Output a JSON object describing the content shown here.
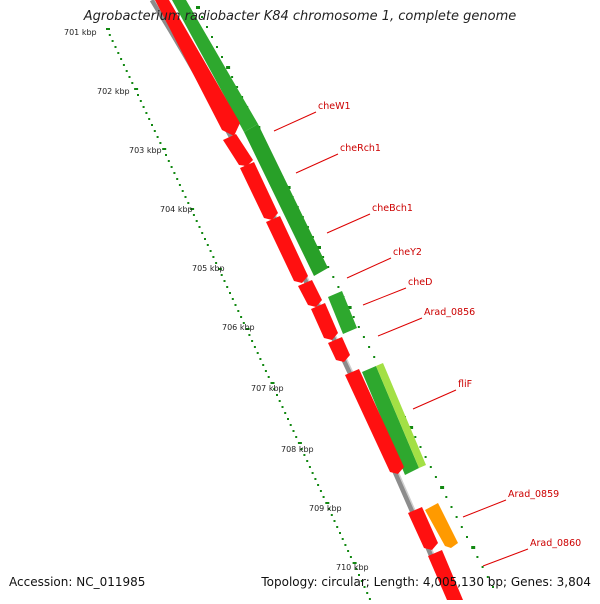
{
  "title": "Agrobacterium radiobacter K84 chromosome 1, complete genome",
  "accession": "Accession: NC_011985",
  "summary": "Topology: circular; Length: 4,005,130 bp; Genes: 3,804",
  "colors": {
    "gene_red": "#ff0000",
    "green_dark": "#1f9e1f",
    "green_mid": "#33bb33",
    "green_light": "#99e03c",
    "orange": "#ff9900",
    "label_red": "#cc0000",
    "ticks_green": "#118811",
    "backbone": "#888888"
  },
  "position_ticks": [
    "701 kbp",
    "702 kbp",
    "703 kbp",
    "704 kbp",
    "705 kbp",
    "706 kbp",
    "707 kbp",
    "708 kbp",
    "709 kbp",
    "710 kbp"
  ],
  "gene_labels": [
    "cheW1",
    "cheRch1",
    "cheBch1",
    "cheY2",
    "cheD",
    "Arad_0856",
    "fliF",
    "Arad_0859",
    "Arad_0860"
  ]
}
